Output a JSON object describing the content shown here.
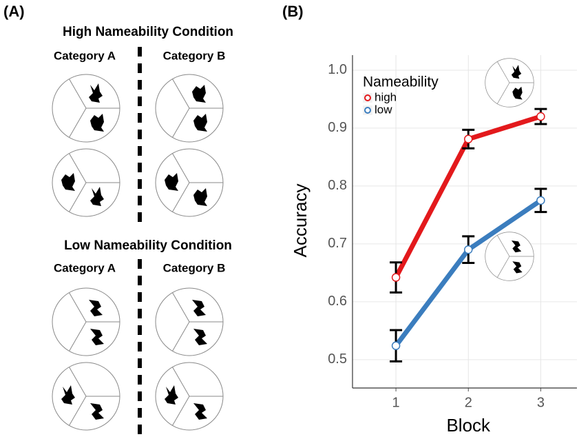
{
  "panel_a": {
    "label": "(A)",
    "sections": [
      {
        "title": "High Nameability Condition",
        "categories": [
          "Category A",
          "Category B"
        ]
      },
      {
        "title": "Low Nameability Condition",
        "categories": [
          "Category A",
          "Category B"
        ]
      }
    ]
  },
  "chart_data": {
    "type": "line",
    "panel_label": "(B)",
    "x_label": "Block",
    "y_label": "Accuracy",
    "x": [
      1,
      2,
      3
    ],
    "xlim": [
      0.4,
      3.5
    ],
    "xticks": [
      1,
      2,
      3
    ],
    "ylim": [
      0.451,
      1.026
    ],
    "yticks": [
      0.5,
      0.6,
      0.7,
      0.8,
      0.9,
      {
        "value": 1.0,
        "label": "1.0"
      }
    ],
    "grid": true,
    "legend_title": "Nameability",
    "legend_position": "top-left",
    "series": [
      {
        "name": "high",
        "color": "#e3191c",
        "values": [
          0.642,
          0.881,
          0.92
        ],
        "errors": [
          0.026,
          0.016,
          0.013
        ]
      },
      {
        "name": "low",
        "color": "#3b7dbe",
        "values": [
          0.524,
          0.69,
          0.775
        ],
        "errors": [
          0.027,
          0.023,
          0.02
        ]
      }
    ]
  }
}
